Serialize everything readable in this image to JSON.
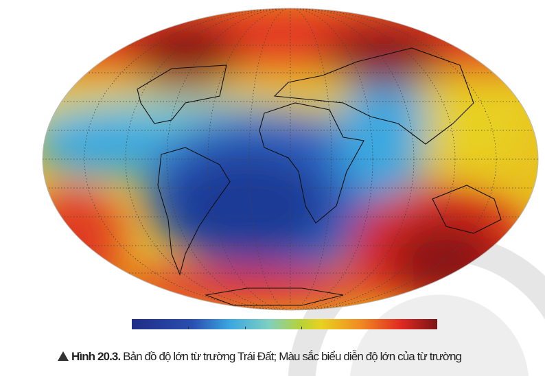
{
  "figure": {
    "label": "Hình 20.3.",
    "caption": " Bản đồ độ lớn từ trường Trái Đất; Màu sắc biểu diễn độ lớn của từ trường",
    "projection": "mollweide",
    "colormap": [
      "#1f2d86",
      "#2a4fb0",
      "#3ba6e0",
      "#7fd0c0",
      "#b5d23a",
      "#e8d21f",
      "#f08a22",
      "#e02a22",
      "#7a1414"
    ],
    "icons": {
      "caption_marker": "triangle-up-icon"
    }
  }
}
